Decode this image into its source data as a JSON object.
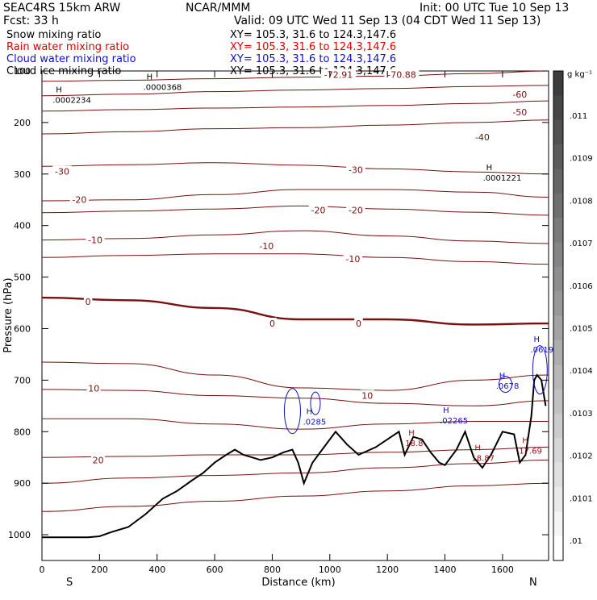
{
  "header": {
    "model": "SEAC4RS 15km ARW",
    "center": "NCAR/MMM",
    "init": "Init: 00 UTC Tue 10 Sep 13",
    "fcst": "Fcst:    33 h",
    "valid": "Valid: 09 UTC Wed 11 Sep 13 (04 CDT Wed 11 Sep 13)",
    "fields": [
      {
        "label": "Snow mixing ratio",
        "xy": "XY= 105.3, 31.6 to 124.3,147.6",
        "color": "#000000"
      },
      {
        "label": "Rain water mixing ratio",
        "xy": "XY= 105.3, 31.6 to 124.3,147.6",
        "color": "#e00000"
      },
      {
        "label": "Cloud water mixing ratio",
        "xy": "XY= 105.3, 31.6 to 124.3,147.6",
        "color": "#1010c8"
      },
      {
        "label": "Cloud ice mixing ratio",
        "xy": "XY= 105.3, 31.6 to 124.3,147.6",
        "color": "#000000"
      }
    ]
  },
  "colors": {
    "temperature": "#7a1010",
    "terrain": "#000000",
    "cloud_water": "#1010c8",
    "rain_water": "#e00000",
    "labels_rain": "#a01010"
  },
  "chart_data": {
    "type": "line",
    "xlabel": "Distance (km)",
    "ylabel": "Pressure (hPa)",
    "xlim": [
      0,
      1760
    ],
    "ylim": [
      1050,
      100
    ],
    "xticks": [
      0,
      200,
      400,
      600,
      800,
      1000,
      1200,
      1400,
      1600
    ],
    "yticks": [
      100,
      200,
      300,
      400,
      500,
      600,
      700,
      800,
      900,
      1000
    ],
    "ytick_labels": [
      "100",
      "200",
      "300",
      "400",
      "500",
      "600",
      "700",
      "800",
      "900",
      "1000"
    ],
    "endpoint_labels": {
      "left": "S",
      "right": "N"
    },
    "colorbar": {
      "unit": "g kg⁻¹",
      "labels": [
        ".01",
        ".0101",
        ".0102",
        ".0103",
        ".0104",
        ".0105",
        ".0106",
        ".0107",
        ".0108",
        ".0109",
        ".011"
      ],
      "values": [
        0.01,
        0.0101,
        0.0102,
        0.0103,
        0.0104,
        0.0105,
        0.0106,
        0.0107,
        0.0108,
        0.0109,
        0.011
      ]
    },
    "terrain": {
      "x": [
        0,
        160,
        200,
        240,
        300,
        360,
        420,
        470,
        520,
        560,
        600,
        640,
        670,
        700,
        760,
        800,
        840,
        870,
        890,
        910,
        940,
        980,
        1020,
        1060,
        1100,
        1160,
        1200,
        1240,
        1260,
        1290,
        1320,
        1350,
        1380,
        1400,
        1440,
        1470,
        1500,
        1530,
        1560,
        1600,
        1640,
        1660,
        1680,
        1700,
        1710,
        1720,
        1735,
        1750
      ],
      "p": [
        1005,
        1005,
        1003,
        995,
        985,
        960,
        930,
        915,
        895,
        880,
        860,
        845,
        835,
        845,
        855,
        850,
        840,
        835,
        860,
        900,
        860,
        830,
        800,
        825,
        845,
        830,
        815,
        800,
        845,
        810,
        815,
        840,
        860,
        865,
        835,
        800,
        850,
        870,
        845,
        800,
        805,
        860,
        845,
        770,
        700,
        690,
        700,
        750
      ]
    },
    "isotherms": [
      {
        "label": "-70.88",
        "p": [
          120,
          118,
          115,
          112,
          110,
          105,
          100
        ],
        "x": [
          0,
          300,
          600,
          900,
          1200,
          1500,
          1760
        ]
      },
      {
        "label": "-60",
        "p": [
          148,
          145,
          140,
          137,
          134,
          130,
          128
        ],
        "x": [
          0,
          300,
          600,
          900,
          1200,
          1500,
          1760
        ]
      },
      {
        "label": "-50",
        "p": [
          178,
          175,
          172,
          170,
          167,
          163,
          158
        ],
        "x": [
          0,
          300,
          600,
          900,
          1200,
          1500,
          1760
        ]
      },
      {
        "label": "-40",
        "p": [
          222,
          218,
          212,
          210,
          205,
          200,
          195
        ],
        "x": [
          0,
          300,
          600,
          900,
          1200,
          1500,
          1760
        ]
      },
      {
        "label": "-30",
        "p": [
          285,
          282,
          278,
          283,
          290,
          296,
          300
        ],
        "x": [
          0,
          300,
          600,
          900,
          1200,
          1500,
          1760
        ]
      },
      {
        "label": "-20",
        "p": [
          352,
          350,
          340,
          330,
          330,
          335,
          345
        ],
        "x": [
          0,
          300,
          600,
          900,
          1200,
          1500,
          1760
        ]
      },
      {
        "label": "-20",
        "p": [
          375,
          372,
          368,
          362,
          368,
          374,
          380
        ],
        "x": [
          0,
          300,
          600,
          900,
          1200,
          1500,
          1760
        ]
      },
      {
        "label": "-10",
        "p": [
          428,
          425,
          418,
          410,
          420,
          430,
          435
        ],
        "x": [
          0,
          300,
          600,
          900,
          1200,
          1500,
          1760
        ]
      },
      {
        "label": "-10",
        "p": [
          462,
          458,
          455,
          455,
          462,
          470,
          475
        ],
        "x": [
          0,
          300,
          600,
          900,
          1200,
          1500,
          1760
        ]
      },
      {
        "label": "0",
        "p": [
          540,
          545,
          560,
          582,
          582,
          592,
          590
        ],
        "x": [
          0,
          300,
          600,
          900,
          1200,
          1500,
          1760
        ]
      },
      {
        "label": "10",
        "p": [
          665,
          668,
          690,
          715,
          720,
          700,
          690
        ],
        "x": [
          0,
          300,
          600,
          900,
          1200,
          1500,
          1760
        ]
      },
      {
        "label": "10",
        "p": [
          718,
          720,
          730,
          735,
          745,
          750,
          740
        ],
        "x": [
          0,
          300,
          600,
          900,
          1200,
          1500,
          1760
        ]
      },
      {
        "label": "",
        "p": [
          775,
          775,
          785,
          795,
          785,
          780,
          780
        ],
        "x": [
          0,
          300,
          600,
          900,
          1200,
          1500,
          1760
        ]
      },
      {
        "label": "20",
        "p": [
          850,
          848,
          845,
          845,
          840,
          835,
          830
        ],
        "x": [
          0,
          300,
          600,
          900,
          1200,
          1500,
          1760
        ]
      },
      {
        "label": "",
        "p": [
          900,
          890,
          885,
          880,
          870,
          862,
          855
        ],
        "x": [
          0,
          300,
          600,
          900,
          1200,
          1500,
          1760
        ]
      },
      {
        "label": "",
        "p": [
          955,
          945,
          935,
          925,
          915,
          905,
          900
        ],
        "x": [
          0,
          300,
          600,
          900,
          1200,
          1500,
          1760
        ]
      }
    ],
    "isotherm_labels": [
      {
        "text": "-72.91",
        "x": 1030,
        "p": 107
      },
      {
        "text": "-70.88",
        "x": 1250,
        "p": 107
      },
      {
        "text": "-60",
        "x": 1660,
        "p": 145
      },
      {
        "text": "-50",
        "x": 1660,
        "p": 180
      },
      {
        "text": "-40",
        "x": 1530,
        "p": 228
      },
      {
        "text": "-30",
        "x": 70,
        "p": 295
      },
      {
        "text": "-30",
        "x": 1090,
        "p": 292
      },
      {
        "text": "-20",
        "x": 130,
        "p": 350
      },
      {
        "text": "-20",
        "x": 960,
        "p": 370
      },
      {
        "text": "-20",
        "x": 1090,
        "p": 370
      },
      {
        "text": "-10",
        "x": 185,
        "p": 428
      },
      {
        "text": "-10",
        "x": 780,
        "p": 440
      },
      {
        "text": "-10",
        "x": 1080,
        "p": 465
      },
      {
        "text": "0",
        "x": 160,
        "p": 548
      },
      {
        "text": "0",
        "x": 800,
        "p": 590
      },
      {
        "text": "0",
        "x": 1100,
        "p": 590
      },
      {
        "text": "10",
        "x": 180,
        "p": 716
      },
      {
        "text": "10",
        "x": 1130,
        "p": 730
      },
      {
        "text": "20",
        "x": 195,
        "p": 855
      }
    ],
    "maxima": [
      {
        "text": ".0002234",
        "x": 65,
        "p": 162,
        "color": "#000000"
      },
      {
        "text": ".0000368",
        "x": 380,
        "p": 137,
        "color": "#000000"
      },
      {
        "text": ".0001221",
        "x": 1560,
        "p": 313,
        "color": "#000000"
      },
      {
        "text": ".0285",
        "x": 935,
        "p": 786,
        "color": "#1010c8"
      },
      {
        "text": ".02265",
        "x": 1410,
        "p": 784,
        "color": "#1010c8"
      },
      {
        "text": ".0678",
        "x": 1605,
        "p": 717,
        "color": "#1010c8"
      },
      {
        "text": ".0619",
        "x": 1725,
        "p": 646,
        "color": "#1010c8"
      },
      {
        "text": "18.8",
        "x": 1290,
        "p": 828,
        "color": "#a01010"
      },
      {
        "text": "18.87",
        "x": 1520,
        "p": 857,
        "color": "#a01010"
      },
      {
        "text": "17.69",
        "x": 1685,
        "p": 843,
        "color": "#a01010"
      }
    ]
  }
}
